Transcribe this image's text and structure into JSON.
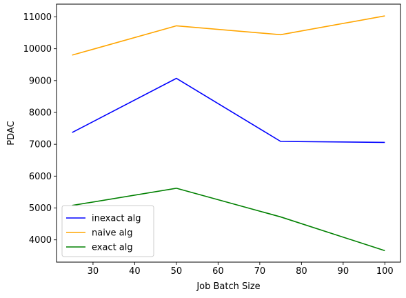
{
  "chart_data": {
    "type": "line",
    "title": "",
    "xlabel": "Job Batch Size",
    "ylabel": "PDAC",
    "xlim": [
      21.25,
      103.75
    ],
    "ylim": [
      3300,
      11400
    ],
    "xticks": [
      30,
      40,
      50,
      60,
      70,
      80,
      90,
      100
    ],
    "yticks": [
      4000,
      5000,
      6000,
      7000,
      8000,
      9000,
      10000,
      11000
    ],
    "grid": false,
    "legend_position": "lower-left",
    "x": [
      25,
      50,
      75,
      100
    ],
    "series": [
      {
        "name": "inexact alg",
        "color": "#0000ff",
        "values": [
          7370,
          9070,
          7090,
          7060
        ]
      },
      {
        "name": "naive alg",
        "color": "#ffa500",
        "values": [
          9800,
          10720,
          10440,
          11030
        ]
      },
      {
        "name": "exact alg",
        "color": "#008000",
        "values": [
          5080,
          5620,
          4720,
          3660
        ]
      }
    ]
  }
}
